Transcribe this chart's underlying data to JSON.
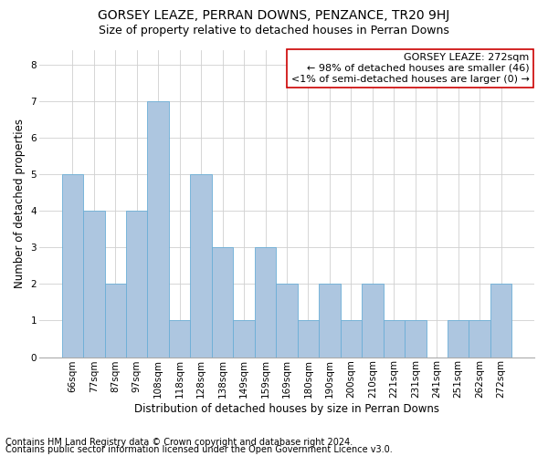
{
  "title": "GORSEY LEAZE, PERRAN DOWNS, PENZANCE, TR20 9HJ",
  "subtitle": "Size of property relative to detached houses in Perran Downs",
  "xlabel": "Distribution of detached houses by size in Perran Downs",
  "ylabel": "Number of detached properties",
  "categories": [
    "66sqm",
    "77sqm",
    "87sqm",
    "97sqm",
    "108sqm",
    "118sqm",
    "128sqm",
    "138sqm",
    "149sqm",
    "159sqm",
    "169sqm",
    "180sqm",
    "190sqm",
    "200sqm",
    "210sqm",
    "221sqm",
    "231sqm",
    "241sqm",
    "251sqm",
    "262sqm",
    "272sqm"
  ],
  "values": [
    5,
    4,
    2,
    4,
    7,
    1,
    5,
    3,
    1,
    3,
    2,
    1,
    2,
    1,
    2,
    1,
    1,
    0,
    1,
    1,
    2
  ],
  "bar_color": "#adc6e0",
  "bar_edge_color": "#6baed6",
  "annotation_text": "GORSEY LEAZE: 272sqm\n← 98% of detached houses are smaller (46)\n<1% of semi-detached houses are larger (0) →",
  "annotation_box_edge_color": "#cc0000",
  "ylim": [
    0,
    8.4
  ],
  "yticks": [
    0,
    1,
    2,
    3,
    4,
    5,
    6,
    7,
    8
  ],
  "footer_line1": "Contains HM Land Registry data © Crown copyright and database right 2024.",
  "footer_line2": "Contains public sector information licensed under the Open Government Licence v3.0.",
  "title_fontsize": 10,
  "subtitle_fontsize": 9,
  "xlabel_fontsize": 8.5,
  "ylabel_fontsize": 8.5,
  "tick_fontsize": 7.5,
  "footer_fontsize": 7,
  "annotation_fontsize": 8,
  "grid_color": "#d0d0d0",
  "background_color": "#ffffff",
  "axes_background": "#ffffff"
}
